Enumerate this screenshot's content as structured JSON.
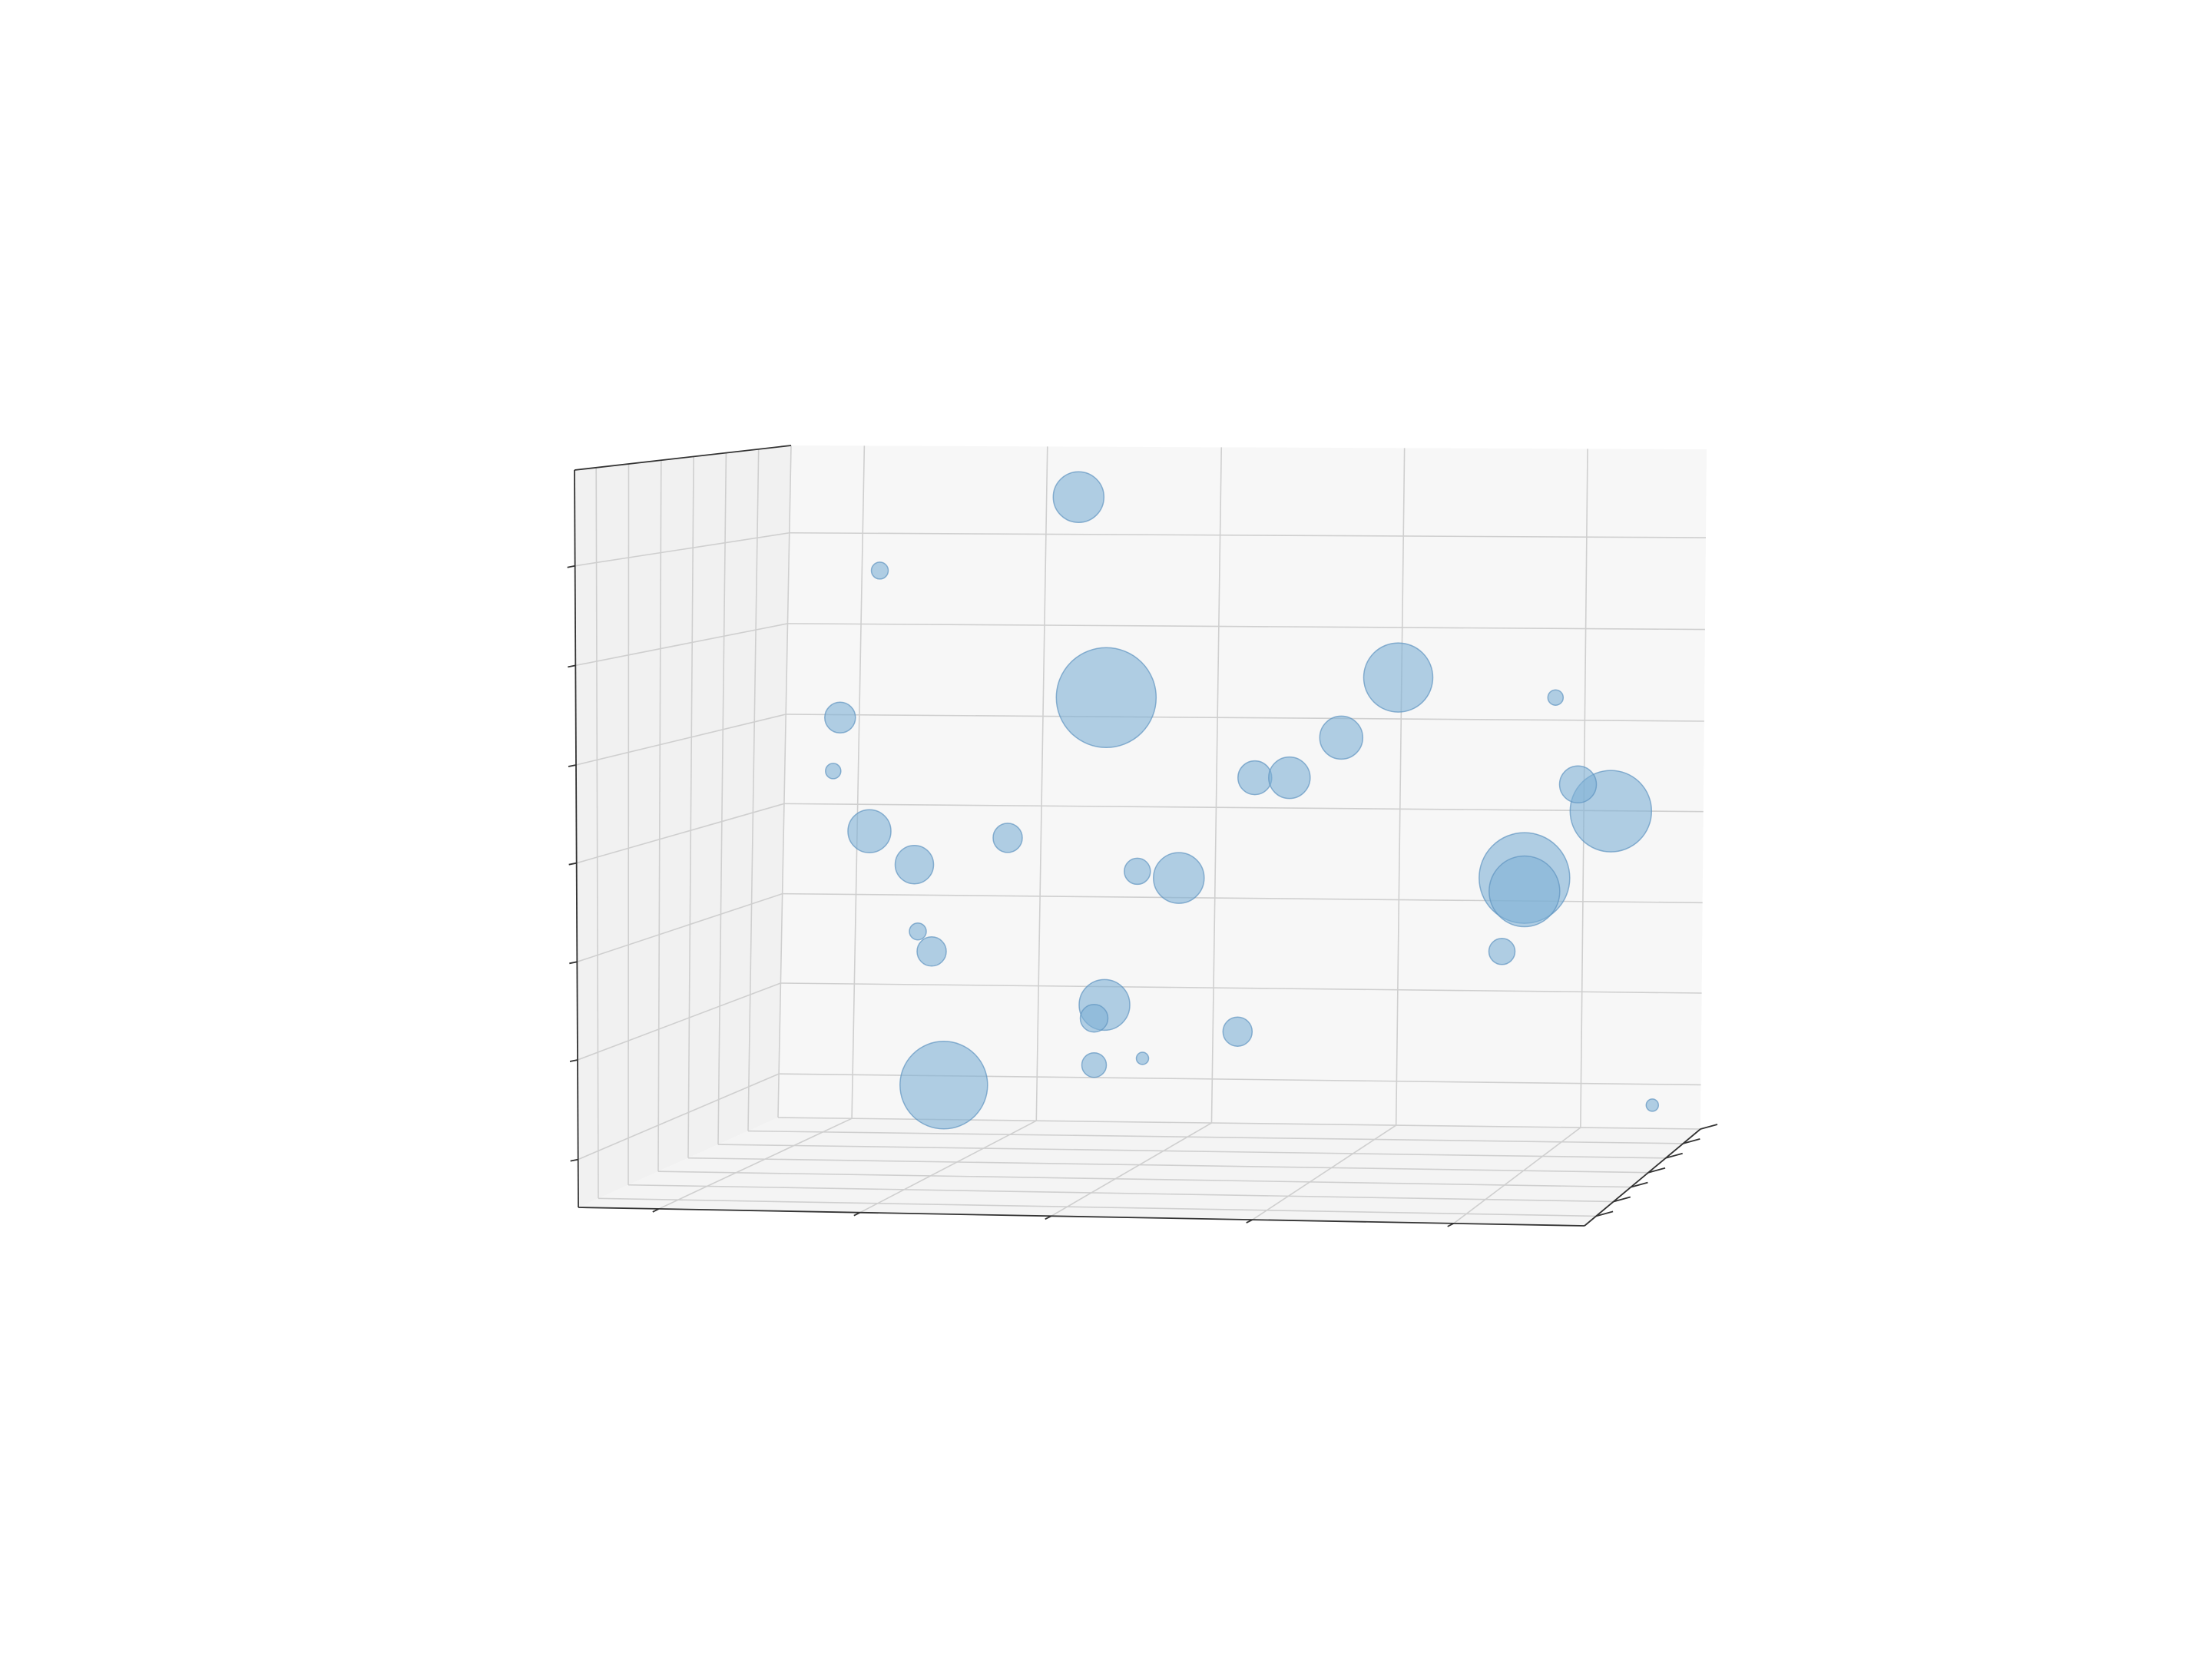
{
  "chart_data": {
    "type": "scatter",
    "title": "",
    "xlabel": "",
    "ylabel": "",
    "zlabel": "",
    "grid": true,
    "legend": "none",
    "colors": {
      "bubble_fill": "#7fb0d6",
      "bubble_stroke": "#5f94c0",
      "pane_back": "#f7f7f7",
      "pane_side": "#f1f1f1",
      "pane_floor": "#f4f4f4"
    },
    "xlim": [
      0,
      5
    ],
    "ylim": [
      0,
      1
    ],
    "zlim": [
      0,
      1
    ],
    "points": [
      {
        "x": 0.95,
        "y": 0.5,
        "z": 0.06,
        "s": 57
      },
      {
        "x": 0.52,
        "y": 0.5,
        "z": 0.44,
        "s": 28
      },
      {
        "x": 0.78,
        "y": 0.5,
        "z": 0.39,
        "s": 25
      },
      {
        "x": 0.88,
        "y": 0.5,
        "z": 0.26,
        "s": 19
      },
      {
        "x": 0.35,
        "y": 0.5,
        "z": 0.61,
        "s": 20
      },
      {
        "x": 0.31,
        "y": 0.5,
        "z": 0.53,
        "s": 10
      },
      {
        "x": 0.8,
        "y": 0.5,
        "z": 0.29,
        "s": 11
      },
      {
        "x": 0.58,
        "y": 0.5,
        "z": 0.83,
        "s": 11
      },
      {
        "x": 1.32,
        "y": 0.5,
        "z": 0.43,
        "s": 19
      },
      {
        "x": 1.73,
        "y": 0.5,
        "z": 0.94,
        "s": 33
      },
      {
        "x": 1.89,
        "y": 0.5,
        "z": 0.64,
        "s": 65
      },
      {
        "x": 1.88,
        "y": 0.5,
        "z": 0.18,
        "s": 33
      },
      {
        "x": 1.82,
        "y": 0.5,
        "z": 0.16,
        "s": 18
      },
      {
        "x": 1.82,
        "y": 0.5,
        "z": 0.09,
        "s": 16
      },
      {
        "x": 2.07,
        "y": 0.5,
        "z": 0.38,
        "s": 17
      },
      {
        "x": 2.31,
        "y": 0.5,
        "z": 0.37,
        "s": 33
      },
      {
        "x": 2.1,
        "y": 0.5,
        "z": 0.1,
        "s": 8
      },
      {
        "x": 2.75,
        "y": 0.5,
        "z": 0.52,
        "s": 22
      },
      {
        "x": 2.95,
        "y": 0.5,
        "z": 0.52,
        "s": 27
      },
      {
        "x": 2.65,
        "y": 0.5,
        "z": 0.14,
        "s": 19
      },
      {
        "x": 3.25,
        "y": 0.5,
        "z": 0.58,
        "s": 28
      },
      {
        "x": 3.58,
        "y": 0.5,
        "z": 0.67,
        "s": 45
      },
      {
        "x": 4.31,
        "y": 0.5,
        "z": 0.37,
        "s": 59
      },
      {
        "x": 4.31,
        "y": 0.5,
        "z": 0.35,
        "s": 46
      },
      {
        "x": 4.18,
        "y": 0.5,
        "z": 0.26,
        "s": 17
      },
      {
        "x": 4.81,
        "y": 0.5,
        "z": 0.47,
        "s": 53
      },
      {
        "x": 4.62,
        "y": 0.5,
        "z": 0.51,
        "s": 24
      },
      {
        "x": 4.49,
        "y": 0.5,
        "z": 0.64,
        "s": 10
      },
      {
        "x": 5.05,
        "y": 0.5,
        "z": 0.03,
        "s": 8
      }
    ]
  }
}
